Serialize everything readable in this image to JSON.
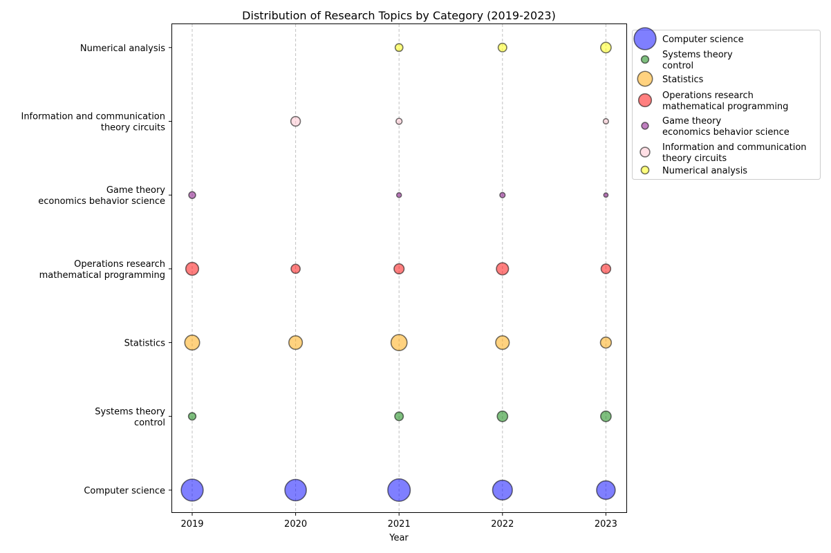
{
  "chart_data": {
    "type": "scatter",
    "title": "Distribution of Research Topics by Category (2019-2023)",
    "xlabel": "Year",
    "ylabel": "",
    "x": [
      "2019",
      "2020",
      "2021",
      "2022",
      "2023"
    ],
    "grid": "vertical dashed",
    "legend_position": "outside right, top",
    "series": [
      {
        "name": "Computer science",
        "color": "#0000ff",
        "values": [
          10.5,
          10.0,
          11.0,
          8.5,
          7.5
        ]
      },
      {
        "name": "Systems theory\ncontrol",
        "color": "#008000",
        "values": [
          1.2,
          null,
          1.6,
          2.4,
          2.4
        ]
      },
      {
        "name": "Statistics",
        "color": "#ffa500",
        "values": [
          4.8,
          4.0,
          5.6,
          4.0,
          2.6
        ]
      },
      {
        "name": "Operations research\nmathematical programming",
        "color": "#ff0000",
        "values": [
          3.6,
          1.8,
          2.2,
          3.2,
          2.0
        ]
      },
      {
        "name": "Game theory\neconomics behavior science",
        "color": "#800080",
        "values": [
          1.0,
          null,
          0.5,
          0.6,
          0.4
        ]
      },
      {
        "name": "Information and communication\ntheory circuits",
        "color": "#ffc0cb",
        "values": [
          null,
          2.0,
          0.8,
          null,
          0.6
        ]
      },
      {
        "name": "Numerical analysis",
        "color": "#ffff00",
        "values": [
          null,
          null,
          1.3,
          1.6,
          2.4
        ]
      }
    ]
  }
}
